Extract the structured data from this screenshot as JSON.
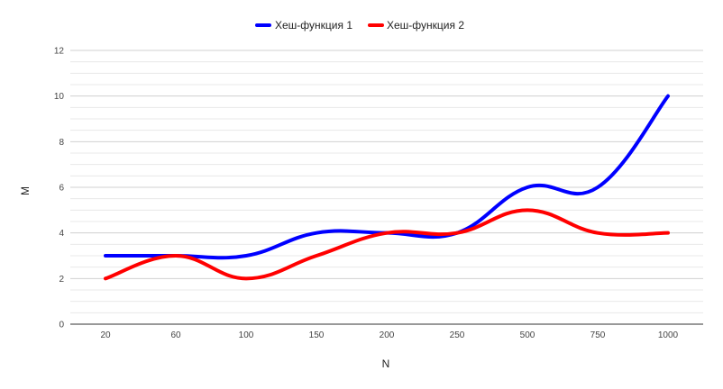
{
  "chart_data": {
    "type": "line",
    "categories": [
      "20",
      "60",
      "100",
      "150",
      "200",
      "250",
      "500",
      "750",
      "1000"
    ],
    "series": [
      {
        "name": "Хеш-функция 1",
        "color": "#0000ff",
        "values": [
          3,
          3,
          3,
          4,
          4,
          4,
          6,
          6,
          10
        ]
      },
      {
        "name": "Хеш-функция 2",
        "color": "#ff0000",
        "values": [
          2,
          3,
          2,
          3,
          4,
          4,
          5,
          4,
          4
        ]
      }
    ],
    "xlabel": "N",
    "ylabel": "M",
    "ylim": [
      0,
      12
    ],
    "yticks": [
      "0",
      "2",
      "4",
      "6",
      "8",
      "10",
      "12"
    ],
    "grid": true,
    "smooth": true,
    "legend": "top-center"
  }
}
